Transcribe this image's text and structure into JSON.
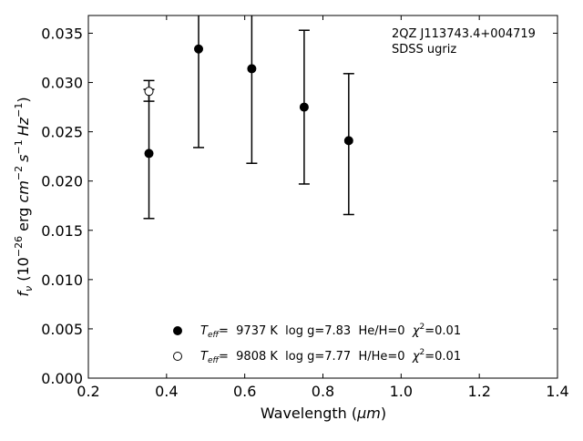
{
  "chart_data": {
    "type": "scatter",
    "title": "",
    "xlabel_main": "Wavelength (",
    "xlabel_unit": "μm",
    "xlabel_close": ")",
    "ylabel_parts": {
      "f": "f",
      "nu": "ν",
      "text1": " (10",
      "exp1": "−26",
      "text2": " erg ",
      "cm": "cm",
      "exp2": "−2",
      "s": "s",
      "exp3": "−1",
      "hz": "Hz",
      "exp4": "−1",
      "close": ")"
    },
    "xlim": [
      0.2,
      1.4
    ],
    "ylim": [
      0.0,
      0.0368
    ],
    "xticks": [
      {
        "value": 0.2,
        "label": "0.2"
      },
      {
        "value": 0.4,
        "label": "0.4"
      },
      {
        "value": 0.6,
        "label": "0.6"
      },
      {
        "value": 0.8,
        "label": "0.8"
      },
      {
        "value": 1.0,
        "label": "1.0"
      },
      {
        "value": 1.2,
        "label": "1.2"
      },
      {
        "value": 1.4,
        "label": "1.4"
      }
    ],
    "yticks": [
      {
        "value": 0.0,
        "label": "0.000"
      },
      {
        "value": 0.005,
        "label": "0.005"
      },
      {
        "value": 0.01,
        "label": "0.010"
      },
      {
        "value": 0.015,
        "label": "0.015"
      },
      {
        "value": 0.02,
        "label": "0.020"
      },
      {
        "value": 0.025,
        "label": "0.025"
      },
      {
        "value": 0.03,
        "label": "0.030"
      },
      {
        "value": 0.035,
        "label": "0.035"
      }
    ],
    "observed": {
      "x": [
        0.355,
        0.482,
        0.618,
        0.752,
        0.866
      ],
      "y": [
        0.0228,
        0.0334,
        0.0314,
        0.0275,
        0.0241
      ],
      "err_low": [
        0.0162,
        0.0234,
        0.0218,
        0.0197,
        0.0166
      ],
      "err_high": [
        0.0293,
        0.0434,
        0.041,
        0.0353,
        0.0309
      ]
    },
    "model_h": {
      "x": [
        0.355
      ],
      "y": [
        0.0291
      ],
      "err_low": [
        0.0281
      ],
      "err_high": [
        0.0302
      ]
    },
    "annotations": [
      "2QZ J113743.4+004719",
      "SDSS ugriz"
    ],
    "legend": [
      {
        "marker": "filled",
        "teff_label": "T",
        "teff_sub": "eff",
        "text": "=  9737 K  log g=7.83  He/H=0  ",
        "chi": "χ",
        "chi_exp": "2",
        "chi_val": "=0.01"
      },
      {
        "marker": "open",
        "teff_label": "T",
        "teff_sub": "eff",
        "text": "=  9808 K  log g=7.77  H/He=0  ",
        "chi": "χ",
        "chi_exp": "2",
        "chi_val": "=0.01"
      }
    ],
    "colors": {
      "marker": "#000000",
      "background": "#ffffff"
    }
  }
}
